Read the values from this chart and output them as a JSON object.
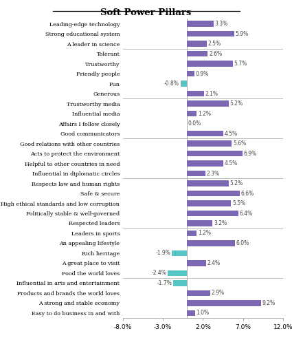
{
  "title": "Soft Power Pillars",
  "categories": [
    "Leading-edge technology",
    "Strong educational system",
    "A leader in science",
    "Tolerant",
    "Trustworthy",
    "Friendly people",
    "Fun",
    "Generous",
    "Trustworthy media",
    "Influential media",
    "Affairs I follow closely",
    "Good communicators",
    "Good relations with other countries",
    "Acts to protect the environment",
    "Helpful to other countries in need",
    "Influential in diplomatic circles",
    "Respects law and human rights",
    "Safe & secure",
    "High ethical standards and low corruption",
    "Politically stable & well-governed",
    "Respected leaders",
    "Leaders in sports",
    "An appealing lifestyle",
    "Rich heritage",
    "A great place to visit",
    "Food the world loves",
    "Influential in arts and entertainment",
    "Products and brands the world loves",
    "A strong and stable economy",
    "Easy to do business in and with"
  ],
  "values": [
    3.3,
    5.9,
    2.5,
    2.6,
    5.7,
    0.9,
    -0.8,
    2.1,
    5.2,
    1.2,
    0.0,
    4.5,
    5.6,
    6.9,
    4.5,
    2.3,
    5.2,
    6.6,
    5.5,
    6.4,
    3.2,
    1.2,
    6.0,
    -1.9,
    2.4,
    -2.4,
    -1.7,
    2.9,
    9.2,
    1.0
  ],
  "group_ends": [
    2,
    7,
    11,
    15,
    20,
    25
  ],
  "bar_color_positive": "#7B68B0",
  "bar_color_negative": "#56C5C5",
  "separator_color": "#BBBBBB",
  "background_color": "#FFFFFF",
  "xlim": [
    -8.0,
    12.0
  ],
  "xticks": [
    -8.0,
    -3.0,
    2.0,
    7.0,
    12.0
  ],
  "xtick_labels": [
    "-8.0%",
    "-3.0%",
    "2.0%",
    "7.0%",
    "12.0%"
  ],
  "label_fontsize": 5.8,
  "value_fontsize": 5.5,
  "title_fontsize": 9.5
}
